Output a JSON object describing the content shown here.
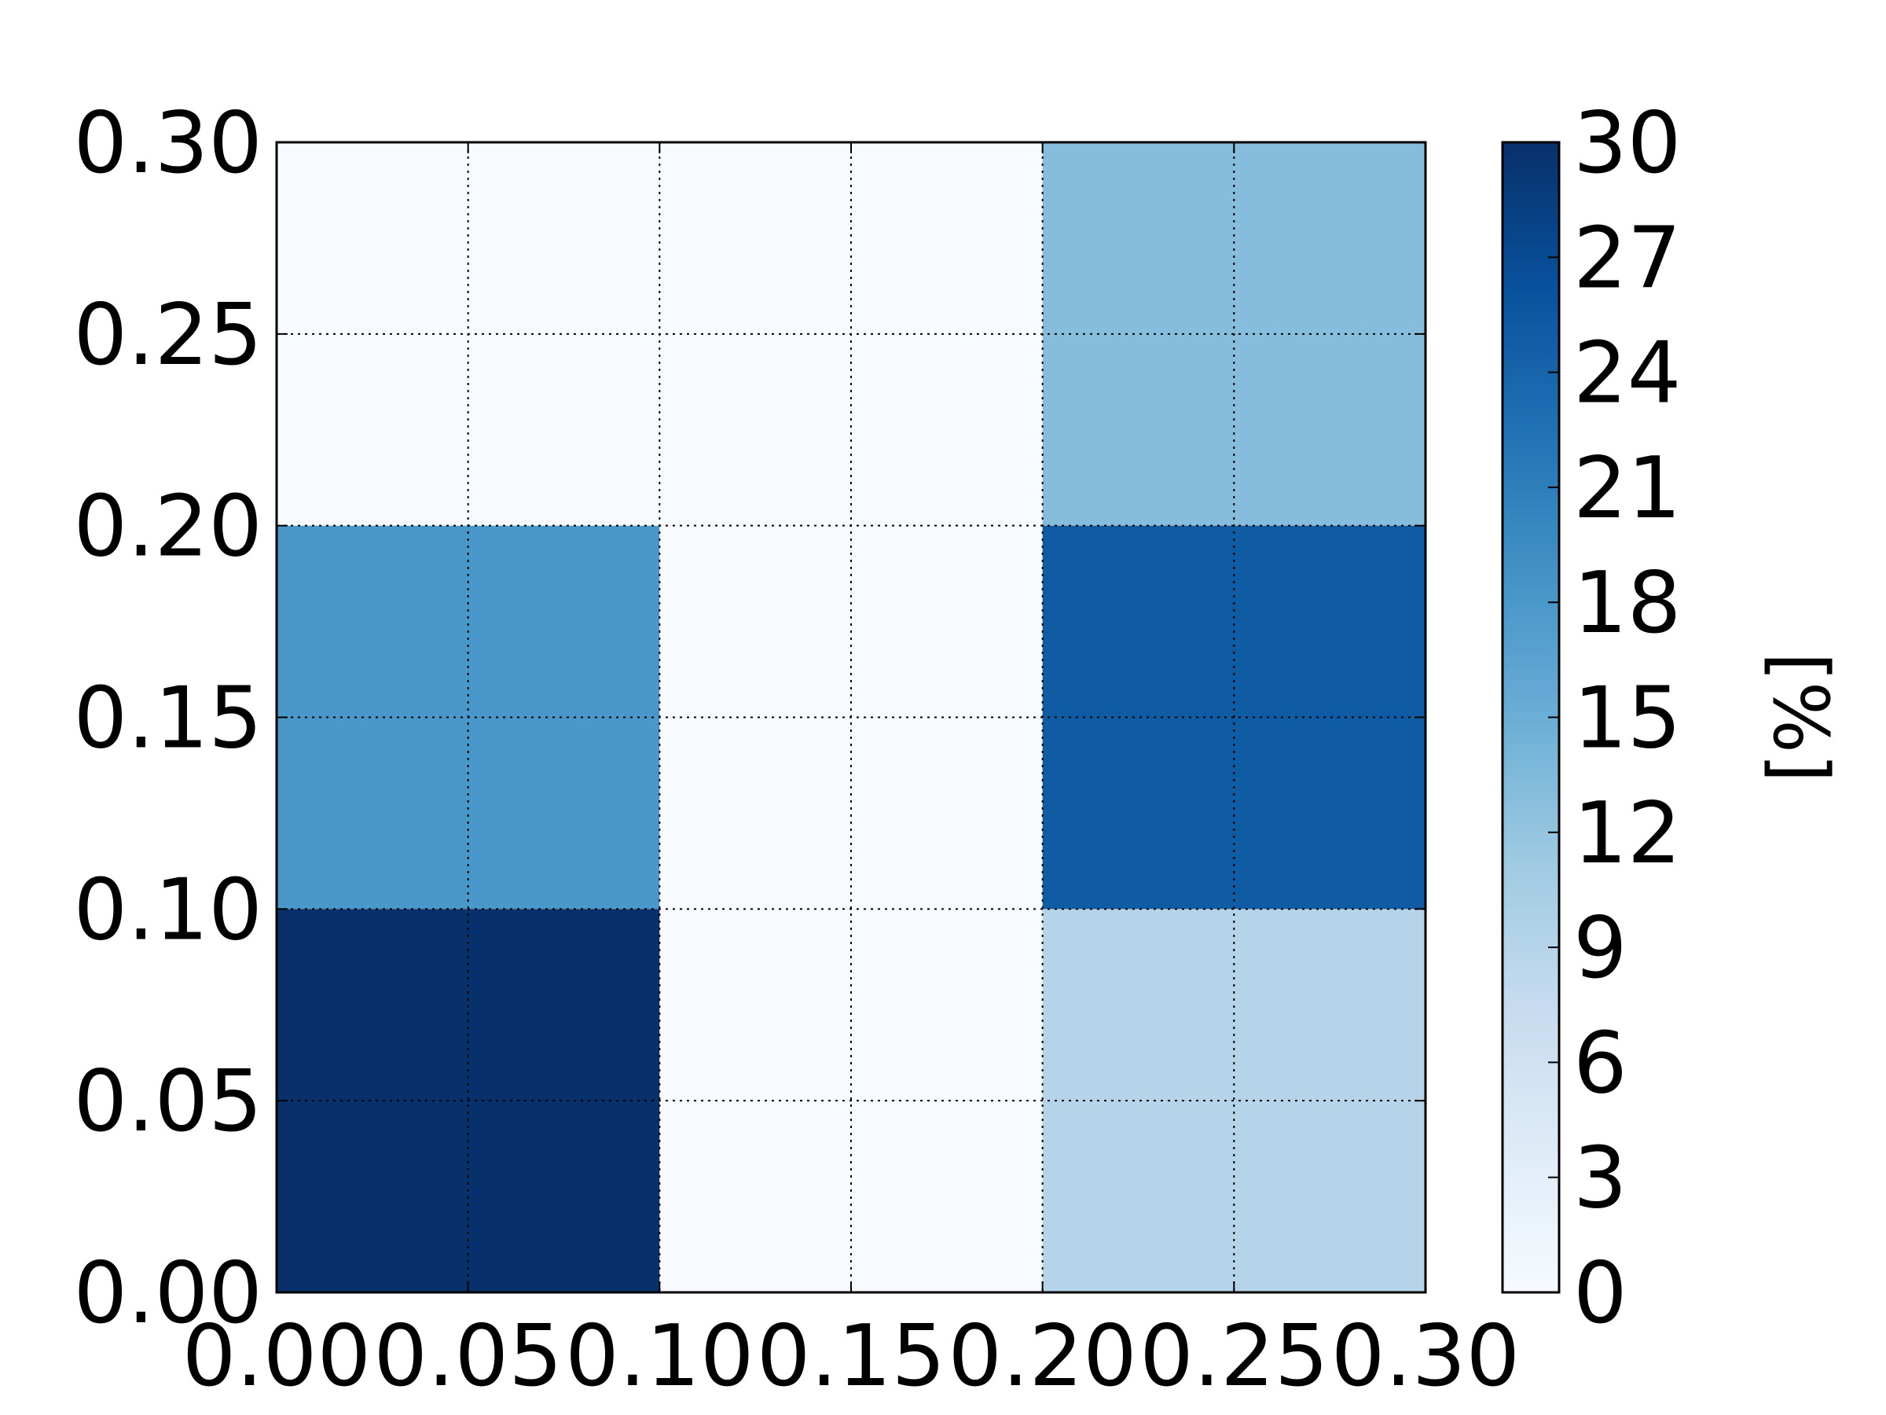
{
  "chart_data": {
    "type": "heatmap",
    "x_edges": [
      0.0,
      0.1,
      0.2,
      0.3
    ],
    "y_edges": [
      0.0,
      0.1,
      0.2,
      0.3
    ],
    "values": [
      [
        30,
        0,
        9
      ],
      [
        18,
        0,
        25
      ],
      [
        0,
        0,
        13
      ]
    ],
    "x_ticks": [
      "0.00",
      "0.05",
      "0.10",
      "0.15",
      "0.20",
      "0.25",
      "0.30"
    ],
    "y_ticks": [
      "0.00",
      "0.05",
      "0.10",
      "0.15",
      "0.20",
      "0.25",
      "0.30"
    ],
    "xlim": [
      0.0,
      0.3
    ],
    "ylim": [
      0.0,
      0.3
    ],
    "grid": true,
    "colorbar": {
      "label": "[%]",
      "ticks": [
        "0",
        "3",
        "6",
        "9",
        "12",
        "15",
        "18",
        "21",
        "24",
        "27",
        "30"
      ],
      "range": [
        0,
        30
      ],
      "colormap": "Blues"
    }
  }
}
